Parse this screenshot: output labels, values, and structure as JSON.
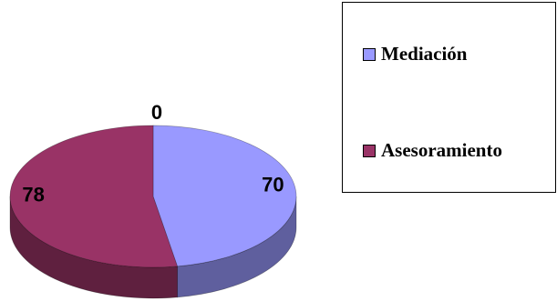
{
  "chart_data": {
    "type": "pie",
    "categories": [
      "Mediación",
      "Asesoramiento"
    ],
    "values": [
      70,
      78
    ],
    "colors": [
      "#9999ff",
      "#993366"
    ],
    "data_labels": [
      "70",
      "78"
    ],
    "top_label": "0",
    "style": "3d",
    "legend_position": "right",
    "title": ""
  }
}
